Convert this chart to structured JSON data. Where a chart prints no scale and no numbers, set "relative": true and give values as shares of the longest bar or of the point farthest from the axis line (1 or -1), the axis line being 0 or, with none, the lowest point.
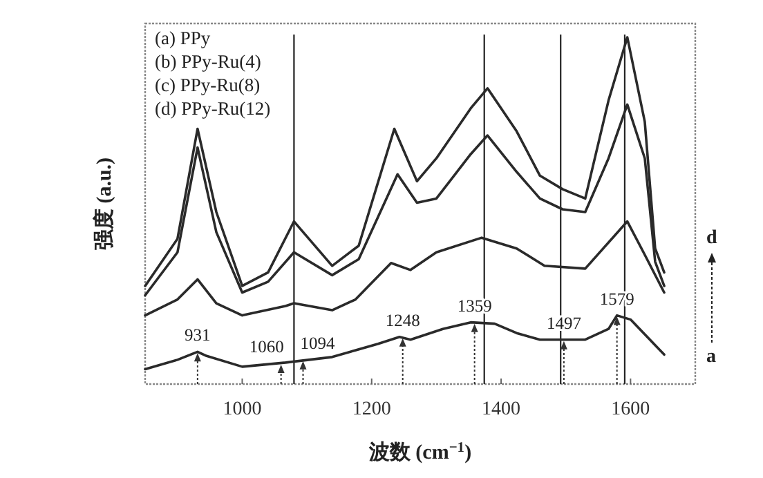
{
  "chart_data": {
    "type": "line",
    "relative": true,
    "xlim": [
      850,
      1700
    ],
    "xticks": [
      1000,
      1200,
      1400,
      1600
    ],
    "tick_labels": "x",
    "grid": false,
    "xlabel": "波数 (cm$^{−1}$)",
    "ylabel": "强度 (a.u.)",
    "series": [
      {
        "color": "#2a2a2a",
        "x": [
          850,
          900,
          931,
          945,
          1000,
          1067,
          1139,
          1210,
          1243,
          1260,
          1310,
          1353,
          1390,
          1424,
          1460,
          1530,
          1566,
          1579,
          1600,
          1652
        ],
        "values": [
          0.043,
          0.07,
          0.093,
          0.081,
          0.05,
          0.062,
          0.078,
          0.116,
          0.136,
          0.128,
          0.159,
          0.178,
          0.174,
          0.147,
          0.128,
          0.128,
          0.159,
          0.198,
          0.186,
          0.085
        ]
      },
      {
        "color": "#2a2a2a",
        "x": [
          850,
          900,
          931,
          960,
          1000,
          1067,
          1080,
          1139,
          1175,
          1230,
          1260,
          1300,
          1370,
          1424,
          1467,
          1530,
          1595,
          1620,
          1652
        ],
        "values": [
          0.198,
          0.244,
          0.302,
          0.233,
          0.198,
          0.225,
          0.233,
          0.213,
          0.244,
          0.349,
          0.329,
          0.38,
          0.422,
          0.391,
          0.341,
          0.333,
          0.469,
          0.38,
          0.264
        ]
      },
      {
        "color": "#2a2a2a",
        "x": [
          850,
          900,
          931,
          960,
          1000,
          1040,
          1080,
          1139,
          1180,
          1240,
          1270,
          1300,
          1353,
          1379,
          1424,
          1460,
          1495,
          1530,
          1566,
          1595,
          1622,
          1638,
          1652
        ],
        "values": [
          0.256,
          0.38,
          0.682,
          0.438,
          0.264,
          0.295,
          0.38,
          0.314,
          0.36,
          0.605,
          0.523,
          0.535,
          0.663,
          0.717,
          0.612,
          0.535,
          0.504,
          0.496,
          0.651,
          0.806,
          0.651,
          0.353,
          0.283
        ]
      },
      {
        "color": "#2a2a2a",
        "x": [
          850,
          900,
          931,
          960,
          1000,
          1040,
          1080,
          1139,
          1180,
          1235,
          1270,
          1300,
          1353,
          1379,
          1424,
          1460,
          1495,
          1530,
          1566,
          1595,
          1622,
          1638,
          1652
        ],
        "values": [
          0.283,
          0.419,
          0.736,
          0.496,
          0.283,
          0.322,
          0.469,
          0.341,
          0.399,
          0.736,
          0.585,
          0.651,
          0.795,
          0.853,
          0.729,
          0.601,
          0.562,
          0.535,
          0.818,
          1.0,
          0.756,
          0.391,
          0.322
        ]
      }
    ],
    "ref_lines": [
      {
        "axis": "x",
        "value": 1080,
        "color": "#222222"
      },
      {
        "axis": "x",
        "value": 1374,
        "color": "#222222"
      },
      {
        "axis": "x",
        "value": 1492,
        "color": "#222222"
      },
      {
        "axis": "x",
        "value": 1591,
        "color": "#222222"
      }
    ],
    "annotations": [
      "(a) PPy",
      "(b) PPy-Ru(4)",
      "(c) PPy-Ru(8)",
      "(d) PPy-Ru(12)",
      "a",
      "d",
      {
        "text": "931",
        "x": 931,
        "y": 0.093
      },
      {
        "text": "1060",
        "x": 1060,
        "y": 0.06
      },
      {
        "text": "1094",
        "x": 1094,
        "y": 0.07
      },
      {
        "text": "1248",
        "x": 1248,
        "y": 0.136
      },
      {
        "text": "1359",
        "x": 1359,
        "y": 0.178
      },
      {
        "text": "1497",
        "x": 1497,
        "y": 0.128
      },
      {
        "text": "1579",
        "x": 1579,
        "y": 0.198
      }
    ]
  }
}
